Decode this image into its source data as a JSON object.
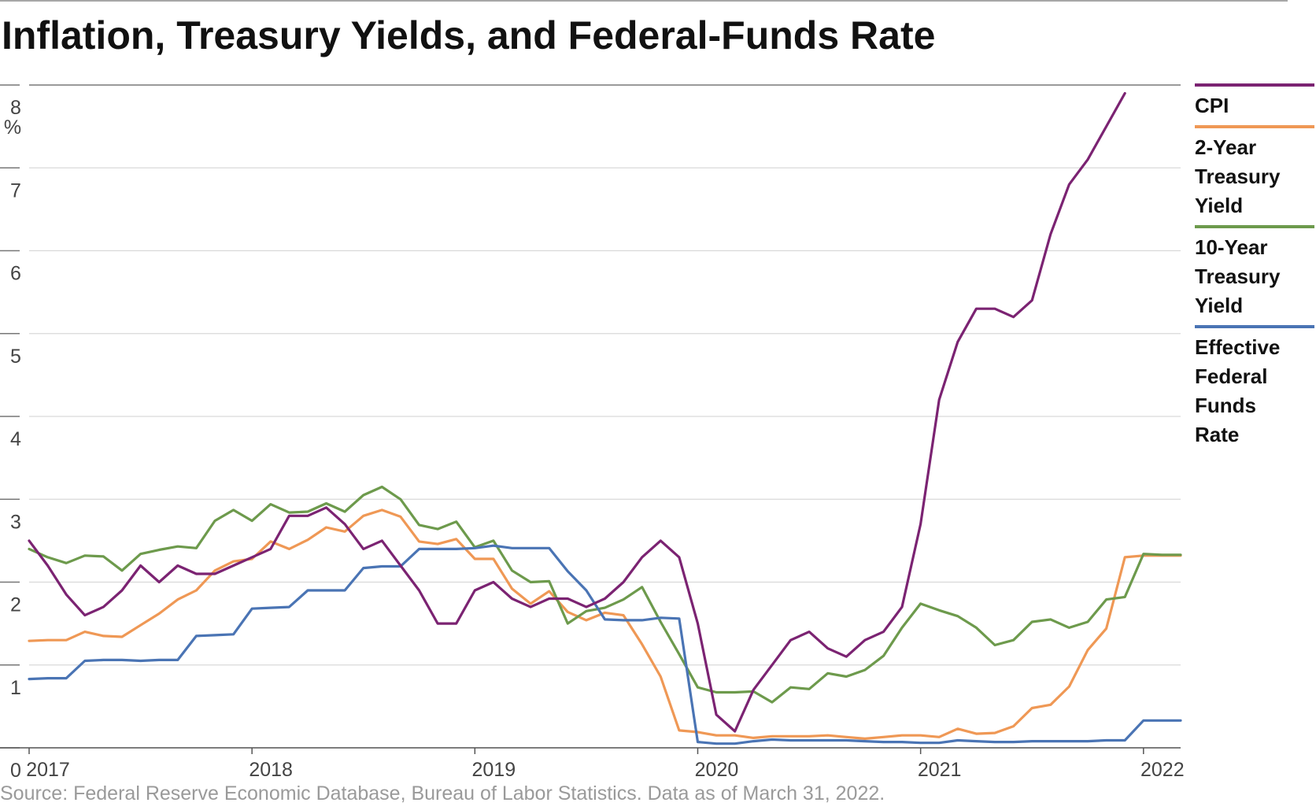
{
  "chart_data": {
    "type": "line",
    "title": "Inflation, Treasury Yields, and Federal-Funds Rate",
    "subtitle": "",
    "xlabel": "",
    "ylabel": "",
    "y_unit": "%",
    "ylim": [
      0,
      8
    ],
    "y_ticks": [
      "0",
      "1",
      "2",
      "3",
      "4",
      "5",
      "6",
      "7",
      "8"
    ],
    "x_ticks": [
      "2017",
      "2018",
      "2019",
      "2020",
      "2021",
      "2022"
    ],
    "x_start": "2017-01",
    "x_end": "2022-03",
    "grid": true,
    "legend_position": "right",
    "source": "Source: Federal Reserve Economic Database, Bureau of Labor Statistics. Data as of March 31, 2022.",
    "dates": [
      "2017-01",
      "2017-02",
      "2017-03",
      "2017-04",
      "2017-05",
      "2017-06",
      "2017-07",
      "2017-08",
      "2017-09",
      "2017-10",
      "2017-11",
      "2017-12",
      "2018-01",
      "2018-02",
      "2018-03",
      "2018-04",
      "2018-05",
      "2018-06",
      "2018-07",
      "2018-08",
      "2018-09",
      "2018-10",
      "2018-11",
      "2018-12",
      "2019-01",
      "2019-02",
      "2019-03",
      "2019-04",
      "2019-05",
      "2019-06",
      "2019-07",
      "2019-08",
      "2019-09",
      "2019-10",
      "2019-11",
      "2019-12",
      "2020-01",
      "2020-02",
      "2020-03",
      "2020-04",
      "2020-05",
      "2020-06",
      "2020-07",
      "2020-08",
      "2020-09",
      "2020-10",
      "2020-11",
      "2020-12",
      "2021-01",
      "2021-02",
      "2021-03",
      "2021-04",
      "2021-05",
      "2021-06",
      "2021-07",
      "2021-08",
      "2021-09",
      "2021-10",
      "2021-11",
      "2021-12",
      "2022-01",
      "2022-02",
      "2022-03"
    ],
    "series": [
      {
        "name": "CPI",
        "color": "#7b2372",
        "values": [
          2.5,
          2.2,
          1.85,
          1.6,
          1.7,
          1.9,
          2.2,
          2.0,
          2.2,
          2.1,
          2.1,
          2.2,
          2.3,
          2.4,
          2.8,
          2.8,
          2.9,
          2.7,
          2.4,
          2.5,
          2.2,
          1.9,
          1.5,
          1.5,
          1.9,
          2.0,
          1.8,
          1.7,
          1.8,
          1.8,
          1.7,
          1.8,
          2.0,
          2.3,
          2.5,
          2.3,
          1.5,
          0.4,
          0.2,
          0.7,
          1.0,
          1.3,
          1.4,
          1.2,
          1.1,
          1.3,
          1.4,
          1.7,
          2.7,
          4.2,
          4.9,
          5.3,
          5.3,
          5.2,
          5.4,
          6.2,
          6.8,
          7.1,
          7.5,
          7.9,
          null,
          null,
          null
        ]
      },
      {
        "name": "2-Year Treasury Yield",
        "color": "#ef9855",
        "values": [
          1.29,
          1.3,
          1.3,
          1.4,
          1.35,
          1.34,
          1.48,
          1.62,
          1.79,
          1.9,
          2.14,
          2.25,
          2.28,
          2.49,
          2.4,
          2.51,
          2.66,
          2.61,
          2.8,
          2.87,
          2.79,
          2.49,
          2.46,
          2.52,
          2.28,
          2.28,
          1.92,
          1.74,
          1.89,
          1.64,
          1.54,
          1.63,
          1.6,
          1.25,
          0.86,
          0.21,
          0.19,
          0.15,
          0.15,
          0.12,
          0.14,
          0.14,
          0.14,
          0.15,
          0.13,
          0.11,
          0.13,
          0.15,
          0.15,
          0.13,
          0.23,
          0.17,
          0.18,
          0.26,
          0.48,
          0.52,
          0.74,
          1.18,
          1.44,
          2.3,
          2.32,
          2.32,
          2.32
        ]
      },
      {
        "name": "10-Year Treasury Yield",
        "color": "#6d9a4c",
        "values": [
          2.4,
          2.3,
          2.23,
          2.32,
          2.31,
          2.14,
          2.34,
          2.39,
          2.43,
          2.41,
          2.74,
          2.87,
          2.74,
          2.94,
          2.84,
          2.85,
          2.95,
          2.85,
          3.05,
          3.15,
          3.0,
          2.69,
          2.64,
          2.73,
          2.42,
          2.5,
          2.14,
          2.0,
          2.01,
          1.5,
          1.65,
          1.69,
          1.79,
          1.94,
          1.52,
          1.13,
          0.73,
          0.67,
          0.67,
          0.68,
          0.55,
          0.73,
          0.71,
          0.9,
          0.86,
          0.94,
          1.11,
          1.45,
          1.74,
          1.66,
          1.59,
          1.45,
          1.24,
          1.3,
          1.52,
          1.55,
          1.45,
          1.52,
          1.79,
          1.82,
          2.34,
          2.33,
          2.33
        ]
      },
      {
        "name": "Effective Federal Funds Rate",
        "color": "#4a74b4",
        "values": [
          0.83,
          0.84,
          0.84,
          1.05,
          1.06,
          1.06,
          1.05,
          1.06,
          1.06,
          1.35,
          1.36,
          1.37,
          1.68,
          1.69,
          1.7,
          1.9,
          1.9,
          1.9,
          2.17,
          2.19,
          2.19,
          2.4,
          2.4,
          2.4,
          2.41,
          2.44,
          2.41,
          2.41,
          2.41,
          2.13,
          1.9,
          1.55,
          1.54,
          1.54,
          1.57,
          1.56,
          0.07,
          0.05,
          0.05,
          0.08,
          0.1,
          0.09,
          0.09,
          0.09,
          0.09,
          0.08,
          0.07,
          0.07,
          0.06,
          0.06,
          0.09,
          0.08,
          0.07,
          0.07,
          0.08,
          0.08,
          0.08,
          0.08,
          0.09,
          0.09,
          0.33,
          0.33,
          0.33
        ]
      }
    ]
  }
}
